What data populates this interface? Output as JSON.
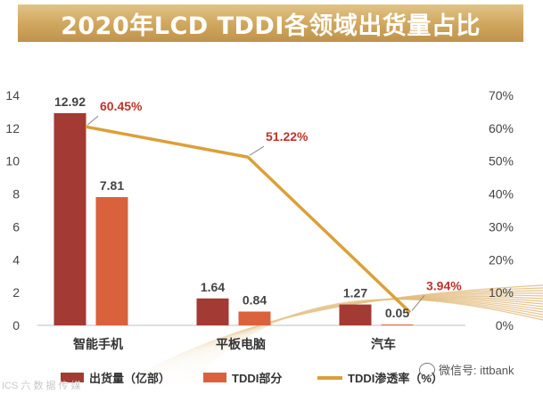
{
  "title": "2020年LCD TDDI各领域出货量占比",
  "colors": {
    "shipment": "#a33a33",
    "tddi": "#d9623d",
    "rate": "#dba039",
    "rate_label": "#c0332b",
    "axis_text": "#444444"
  },
  "chart_data": {
    "type": "bar+line",
    "categories": [
      "智能手机",
      "平板电脑",
      "汽车"
    ],
    "series": [
      {
        "name": "出货量（亿部）",
        "type": "bar",
        "axis": "left",
        "values": [
          12.92,
          1.64,
          1.27
        ],
        "labels": [
          "12.92",
          "1.64",
          "1.27"
        ]
      },
      {
        "name": "TDDI部分",
        "type": "bar",
        "axis": "left",
        "values": [
          7.81,
          0.84,
          0.05
        ],
        "labels": [
          "7.81",
          "0.84",
          "0.05"
        ]
      },
      {
        "name": "TDDI渗透率（%）",
        "type": "line",
        "axis": "right",
        "values": [
          60.45,
          51.22,
          3.94
        ],
        "labels": [
          "60.45%",
          "51.22%",
          "3.94%"
        ]
      }
    ],
    "ylim_left": [
      0,
      14
    ],
    "yticks_left": [
      "0",
      "2",
      "4",
      "6",
      "8",
      "10",
      "12",
      "14"
    ],
    "ylim_right": [
      0,
      70
    ],
    "yticks_right": [
      "0%",
      "10%",
      "20%",
      "30%",
      "40%",
      "50%",
      "60%",
      "70%"
    ],
    "legend_position": "bottom"
  },
  "watermarks": {
    "left": "ICS 六 数 据 传 媒",
    "right": "微信号: ittbank"
  }
}
